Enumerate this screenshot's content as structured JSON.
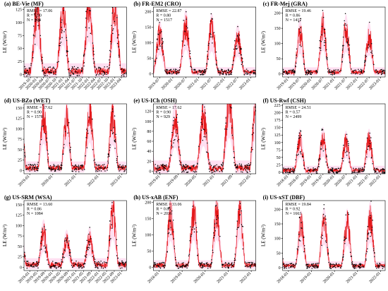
{
  "chart_data": [
    {
      "type": "scatter",
      "title": "(a) BE-Vie (MF)",
      "stats": [
        "RMSE = 17.06",
        "R = 0.90",
        "N = 908"
      ],
      "ylabel": "LE (W/m²)",
      "ylim": [
        -5,
        130
      ],
      "yticks": [
        0,
        25,
        50,
        75,
        100,
        125
      ],
      "x_tick_labels": [
        "2019-10",
        "2020-01",
        "2020-04",
        "2020-07",
        "2020-10",
        "2021-01",
        "2021-04",
        "2021-07",
        "2021-10",
        "2022-01",
        "2022-04",
        "2022-07",
        "2022-10",
        "2023-01",
        "2023-04"
      ],
      "x_tick_rotation": 45,
      "series": [
        {
          "values_source": "observed",
          "points": [
            [
              2019.8,
              10
            ],
            [
              2020.05,
              34
            ],
            [
              2020.3,
              50
            ],
            [
              2020.5,
              110
            ],
            [
              2020.7,
              92
            ],
            [
              2021.05,
              28
            ],
            [
              2021.5,
              112
            ],
            [
              2021.8,
              40
            ],
            [
              2022.05,
              18
            ],
            [
              2022.5,
              124
            ],
            [
              2022.75,
              55
            ],
            [
              2023.05,
              12
            ]
          ]
        },
        {
          "values_source": "predicted",
          "points": [
            [
              2019.8,
              12
            ],
            [
              2020.05,
              25
            ],
            [
              2020.3,
              45
            ],
            [
              2020.5,
              100
            ],
            [
              2020.7,
              80
            ],
            [
              2021.05,
              22
            ],
            [
              2021.5,
              105
            ],
            [
              2021.8,
              38
            ],
            [
              2022.05,
              15
            ],
            [
              2022.5,
              118
            ],
            [
              2022.75,
              50
            ],
            [
              2023.05,
              10
            ]
          ]
        }
      ],
      "annual_peaks": [
        {
          "year": 2020,
          "peak": 110
        },
        {
          "year": 2021,
          "peak": 112
        },
        {
          "year": 2022,
          "peak": 124
        }
      ]
    },
    {
      "type": "scatter",
      "title": "(b) FR-EM2 (CRO)",
      "stats": [
        "RMSE = 22.87",
        "R = 0.80",
        "N = 1517"
      ],
      "ylabel": "LE (W/m²)",
      "ylim": [
        -10,
        215
      ],
      "yticks": [
        0,
        50,
        100,
        150,
        200
      ],
      "x_tick_labels": [
        "2019-07",
        "2020-01",
        "2020-07",
        "2021-01",
        "2021-07",
        "2022-01",
        "2022-07",
        "2023-01"
      ],
      "x_tick_rotation": 45,
      "annual_peaks": [
        {
          "year": 2019.5,
          "peak": 120
        },
        {
          "year": 2020.5,
          "peak": 150
        },
        {
          "year": 2021.5,
          "peak": 140
        },
        {
          "year": 2022.5,
          "peak": 110
        }
      ]
    },
    {
      "type": "scatter",
      "title": "(c) FR-Mej (GRA)",
      "stats": [
        "RMSE = 19.46",
        "R = 0.86",
        "N = 1417"
      ],
      "ylabel": "LE (W/m²)",
      "ylim": [
        -10,
        220
      ],
      "yticks": [
        0,
        50,
        100,
        150,
        200
      ],
      "x_tick_labels": [
        "2019-01",
        "2019-07",
        "2020-01",
        "2020-07",
        "2021-01",
        "2021-07",
        "2022-01",
        "2022-07",
        "2023-01"
      ],
      "x_tick_rotation": 45,
      "annual_peaks": [
        {
          "year": 2019.5,
          "peak": 130
        },
        {
          "year": 2020.5,
          "peak": 150
        },
        {
          "year": 2021.5,
          "peak": 140
        },
        {
          "year": 2022.5,
          "peak": 120
        }
      ]
    },
    {
      "type": "scatter",
      "title": "(d) US-BZo (WET)",
      "stats": [
        "RMSE = 17.62",
        "R = 0.90",
        "N = 1578"
      ],
      "ylabel": "LE (W/m²)",
      "ylim": [
        -8,
        160
      ],
      "yticks": [
        0,
        25,
        50,
        75,
        100,
        125,
        150
      ],
      "x_tick_labels": [
        "2019-01",
        "2020-01",
        "2021-01",
        "2022-01",
        "2023-01"
      ],
      "x_tick_rotation": 45,
      "annual_peaks": [
        {
          "year": 2018.6,
          "peak": 120
        },
        {
          "year": 2019.6,
          "peak": 125
        },
        {
          "year": 2020.6,
          "peak": 115
        },
        {
          "year": 2021.6,
          "peak": 130
        },
        {
          "year": 2022.6,
          "peak": 120
        }
      ]
    },
    {
      "type": "scatter",
      "title": "(e) US-ICh (OSH)",
      "stats": [
        "RMSE = 17.62",
        "R = 0.90",
        "N = 929"
      ],
      "ylabel": "LE (W/m²)",
      "ylim": [
        -5,
        135
      ],
      "yticks": [
        0,
        20,
        40,
        60,
        80,
        100,
        120
      ],
      "x_tick_labels": [
        "2019-01",
        "2019-09",
        "2020-05",
        "2021-01",
        "2021-09",
        "2022-05"
      ],
      "x_tick_rotation": 45,
      "annual_peaks": [
        {
          "year": 2019.55,
          "peak": 95
        },
        {
          "year": 2020.6,
          "peak": 100
        },
        {
          "year": 2021.55,
          "peak": 130
        }
      ]
    },
    {
      "type": "scatter",
      "title": "(f) US-Rwf (CSH)",
      "stats": [
        "RMSE = 24.51",
        "R = 0.57",
        "N = 2499"
      ],
      "ylabel": "LE (W/m²)",
      "ylim": [
        -5,
        230
      ],
      "yticks": [
        0,
        25,
        50,
        75,
        100,
        125,
        150,
        175,
        200,
        225
      ],
      "x_tick_labels": [
        "2018-01",
        "2018-07",
        "2019-01",
        "2019-07",
        "2020-01",
        "2020-07",
        "2021-01",
        "2021-07",
        "2022-01"
      ],
      "x_tick_rotation": 45,
      "annual_peaks": [
        {
          "year": 2018.5,
          "peak": 100
        },
        {
          "year": 2019.5,
          "peak": 105
        },
        {
          "year": 2020.5,
          "peak": 95
        },
        {
          "year": 2021.5,
          "peak": 100
        }
      ]
    },
    {
      "type": "scatter",
      "title": "(g) US-SRM (WSA)",
      "stats": [
        "RMSE = 13.60",
        "R = 0.86",
        "N = 1084"
      ],
      "ylabel": "LE (W/m²)",
      "ylim": [
        -8,
        160
      ],
      "yticks": [
        0,
        25,
        50,
        75,
        100,
        125,
        150
      ],
      "x_tick_labels": [
        "2019-01",
        "2019-05",
        "2019-09",
        "2020-01",
        "2020-05",
        "2020-09",
        "2021-01",
        "2021-05",
        "2021-09",
        "2022-01",
        "2022-05",
        "2022-09",
        "2023-01"
      ],
      "x_tick_rotation": 45,
      "annual_peaks": [
        {
          "year": 2019.6,
          "peak": 75
        },
        {
          "year": 2020.6,
          "peak": 55
        },
        {
          "year": 2021.6,
          "peak": 60
        },
        {
          "year": 2022.6,
          "peak": 130
        }
      ]
    },
    {
      "type": "scatter",
      "title": "(h) US-xAB (ENF)",
      "stats": [
        "RMSE = 33.06",
        "R = 0.85",
        "N = 2036"
      ],
      "ylabel": "LE (W/m²)",
      "ylim": [
        -10,
        205
      ],
      "yticks": [
        0,
        50,
        100,
        150,
        200
      ],
      "x_tick_labels": [
        "2018-01",
        "2019-01",
        "2020-01",
        "2021-01",
        "2022-01"
      ],
      "x_tick_rotation": 45,
      "annual_peaks": [
        {
          "year": 2017.5,
          "peak": 150
        },
        {
          "year": 2018.5,
          "peak": 155
        },
        {
          "year": 2019.5,
          "peak": 160
        },
        {
          "year": 2020.5,
          "peak": 160
        },
        {
          "year": 2021.5,
          "peak": 165
        },
        {
          "year": 2022.5,
          "peak": 160
        }
      ]
    },
    {
      "type": "scatter",
      "title": "(i) US-xST (DBF)",
      "stats": [
        "RMSE = 19.84",
        "R = 0.92",
        "N = 1663"
      ],
      "ylabel": "LE (W/m²)",
      "ylim": [
        -10,
        230
      ],
      "yticks": [
        0,
        50,
        100,
        150,
        200
      ],
      "x_tick_labels": [
        "2018-01",
        "2019-01",
        "2020-01",
        "2021-01",
        "2022-01"
      ],
      "x_tick_rotation": 45,
      "annual_peaks": [
        {
          "year": 2017.55,
          "peak": 150
        },
        {
          "year": 2018.55,
          "peak": 140
        },
        {
          "year": 2019.55,
          "peak": 150
        },
        {
          "year": 2020.55,
          "peak": 145
        },
        {
          "year": 2021.55,
          "peak": 165
        },
        {
          "year": 2022.55,
          "peak": 150
        }
      ]
    }
  ],
  "colors": {
    "observed": "#000000",
    "predicted": "#e41a1c",
    "shade": "#ffd9ef"
  }
}
